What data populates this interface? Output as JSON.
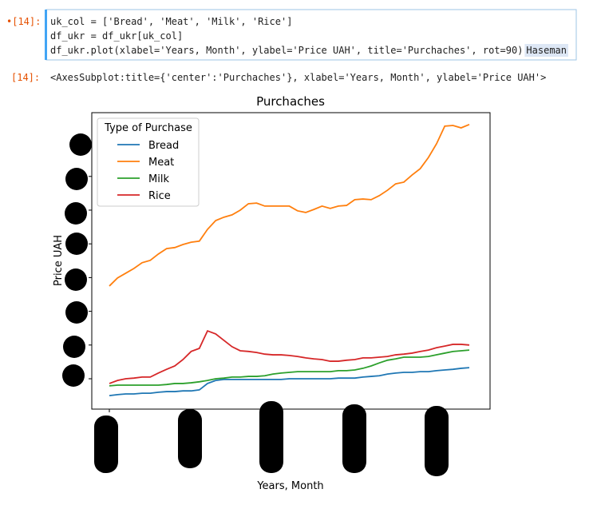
{
  "cell": {
    "in_prompt": "•[14]:",
    "code_lines": [
      "uk_col = ['Bread', 'Meat', 'Milk', 'Rice']",
      "df_ukr = df_ukr[uk_col]",
      "df_ukr.plot(xlabel='Years, Month', ylabel='Price UAH', title='Purchaches', rot=90)"
    ],
    "highlight": "Haseman",
    "out_prompt": "[14]:",
    "output": "<AxesSubplot:title={'center':'Purchaches'}, xlabel='Years, Month', ylabel='Price UAH'>"
  },
  "chart_data": {
    "type": "line",
    "title": "Purchaches",
    "x_label": "Years, Month",
    "y_label": "Price UAH",
    "legend_title": "Type of Purchase",
    "legend": "upper left",
    "categories": [
      null,
      null,
      null,
      null,
      null,
      null,
      null,
      null,
      null,
      null,
      null,
      null,
      null,
      null,
      null,
      null,
      null,
      null,
      null,
      null,
      null,
      null,
      null,
      null,
      null,
      null,
      null,
      null,
      null,
      null,
      null,
      null,
      null,
      null,
      null,
      null,
      null,
      null,
      null,
      null,
      null,
      null,
      null,
      null,
      null
    ],
    "ylim": [
      -0.9,
      7.89
    ],
    "yticks": [
      0,
      1,
      2,
      3,
      4,
      5,
      6,
      7
    ],
    "series": [
      {
        "name": "Bread",
        "color": "#1f77b4",
        "values": [
          -0.5,
          -0.47,
          -0.45,
          -0.45,
          -0.43,
          -0.43,
          -0.4,
          -0.38,
          -0.38,
          -0.36,
          -0.36,
          -0.33,
          -0.14,
          -0.05,
          -0.02,
          -0.02,
          -0.02,
          -0.02,
          -0.02,
          -0.02,
          -0.02,
          -0.02,
          0,
          0,
          0,
          0,
          0,
          0,
          0.02,
          0.02,
          0.02,
          0.05,
          0.07,
          0.09,
          0.14,
          0.17,
          0.19,
          0.19,
          0.21,
          0.21,
          0.24,
          0.26,
          0.28,
          0.31,
          0.33
        ]
      },
      {
        "name": "Meat",
        "color": "#ff7f0e",
        "values": [
          2.75,
          2.99,
          3.13,
          3.27,
          3.44,
          3.51,
          3.7,
          3.86,
          3.89,
          3.98,
          4.05,
          4.08,
          4.43,
          4.69,
          4.79,
          4.86,
          5.0,
          5.19,
          5.21,
          5.12,
          5.12,
          5.12,
          5.12,
          4.98,
          4.93,
          5.02,
          5.12,
          5.05,
          5.12,
          5.14,
          5.31,
          5.33,
          5.31,
          5.43,
          5.59,
          5.78,
          5.83,
          6.04,
          6.23,
          6.56,
          6.97,
          7.49,
          7.51,
          7.44,
          7.54
        ]
      },
      {
        "name": "Milk",
        "color": "#2ca02c",
        "values": [
          -0.21,
          -0.19,
          -0.19,
          -0.19,
          -0.19,
          -0.19,
          -0.19,
          -0.17,
          -0.14,
          -0.14,
          -0.12,
          -0.09,
          -0.05,
          0,
          0.02,
          0.05,
          0.05,
          0.07,
          0.07,
          0.09,
          0.14,
          0.17,
          0.19,
          0.21,
          0.21,
          0.21,
          0.21,
          0.21,
          0.24,
          0.24,
          0.26,
          0.31,
          0.38,
          0.47,
          0.55,
          0.59,
          0.64,
          0.64,
          0.64,
          0.66,
          0.71,
          0.76,
          0.81,
          0.83,
          0.85
        ]
      },
      {
        "name": "Rice",
        "color": "#d62728",
        "values": [
          -0.14,
          -0.05,
          0,
          0.02,
          0.05,
          0.05,
          0.17,
          0.28,
          0.38,
          0.57,
          0.81,
          0.9,
          1.42,
          1.33,
          1.14,
          0.95,
          0.83,
          0.81,
          0.78,
          0.73,
          0.71,
          0.71,
          0.69,
          0.66,
          0.62,
          0.59,
          0.57,
          0.52,
          0.52,
          0.55,
          0.57,
          0.62,
          0.62,
          0.64,
          0.66,
          0.71,
          0.73,
          0.76,
          0.81,
          0.85,
          0.92,
          0.97,
          1.02,
          1.02,
          1.0
        ]
      }
    ]
  }
}
